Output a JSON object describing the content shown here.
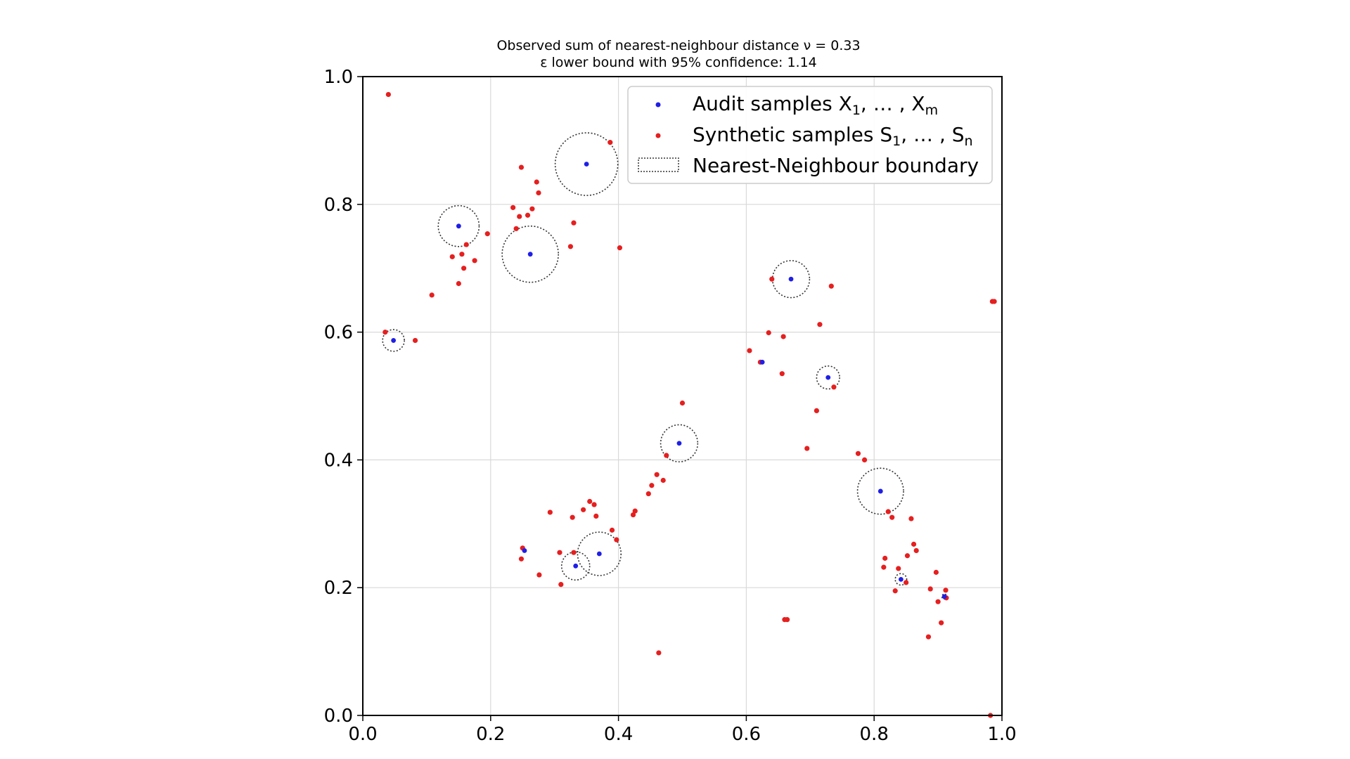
{
  "chart_data": {
    "type": "scatter",
    "title_line1": "Observed sum of nearest-neighbour distance ν = 0.33",
    "title_line2": "ε lower bound with 95% confidence: 1.14",
    "xlabel": "",
    "ylabel": "",
    "xlim": [
      0.0,
      1.0
    ],
    "ylim": [
      0.0,
      1.0
    ],
    "grid": true,
    "legend_position": "top-right",
    "x_ticks": [
      "0.0",
      "0.2",
      "0.4",
      "0.6",
      "0.8",
      "1.0"
    ],
    "y_ticks": [
      "0.0",
      "0.2",
      "0.4",
      "0.6",
      "0.8",
      "1.0"
    ],
    "legend": {
      "audit_label": "Audit samples X",
      "audit_sub1": "1",
      "audit_mid": ", … , X",
      "audit_sub2": "m",
      "synthetic_label": "Synthetic samples S",
      "synthetic_sub1": "1",
      "synthetic_mid": ", … , S",
      "synthetic_sub2": "n",
      "boundary_label": "Nearest-Neighbour boundary"
    },
    "colors": {
      "audit": "#1f1fe6",
      "synthetic": "#e61f1f",
      "boundary": "#333333",
      "grid": "#d9d9d9"
    },
    "series": [
      {
        "name": "Audit samples X1, …, Xm",
        "marker": "blue-dot",
        "points": [
          {
            "x": 0.048,
            "y": 0.587,
            "r": 0.017
          },
          {
            "x": 0.15,
            "y": 0.766,
            "r": 0.032
          },
          {
            "x": 0.262,
            "y": 0.722,
            "r": 0.044
          },
          {
            "x": 0.35,
            "y": 0.863,
            "r": 0.049
          },
          {
            "x": 0.253,
            "y": 0.258,
            "r": 0.0
          },
          {
            "x": 0.333,
            "y": 0.234,
            "r": 0.022
          },
          {
            "x": 0.37,
            "y": 0.253,
            "r": 0.034
          },
          {
            "x": 0.495,
            "y": 0.426,
            "r": 0.029
          },
          {
            "x": 0.67,
            "y": 0.683,
            "r": 0.029
          },
          {
            "x": 0.728,
            "y": 0.529,
            "r": 0.018
          },
          {
            "x": 0.81,
            "y": 0.351,
            "r": 0.036
          },
          {
            "x": 0.842,
            "y": 0.213,
            "r": 0.009
          },
          {
            "x": 0.91,
            "y": 0.186,
            "r": 0.004
          },
          {
            "x": 0.625,
            "y": 0.553,
            "r": 0.0
          }
        ]
      },
      {
        "name": "Synthetic samples S1, …, Sn",
        "marker": "red-dot",
        "points": [
          {
            "x": 0.04,
            "y": 0.972
          },
          {
            "x": 0.035,
            "y": 0.6
          },
          {
            "x": 0.082,
            "y": 0.587
          },
          {
            "x": 0.108,
            "y": 0.658
          },
          {
            "x": 0.14,
            "y": 0.718
          },
          {
            "x": 0.15,
            "y": 0.676
          },
          {
            "x": 0.155,
            "y": 0.722
          },
          {
            "x": 0.158,
            "y": 0.7
          },
          {
            "x": 0.162,
            "y": 0.737
          },
          {
            "x": 0.175,
            "y": 0.712
          },
          {
            "x": 0.195,
            "y": 0.754
          },
          {
            "x": 0.235,
            "y": 0.795
          },
          {
            "x": 0.24,
            "y": 0.762
          },
          {
            "x": 0.245,
            "y": 0.781
          },
          {
            "x": 0.248,
            "y": 0.858
          },
          {
            "x": 0.258,
            "y": 0.783
          },
          {
            "x": 0.265,
            "y": 0.793
          },
          {
            "x": 0.272,
            "y": 0.835
          },
          {
            "x": 0.275,
            "y": 0.818
          },
          {
            "x": 0.325,
            "y": 0.734
          },
          {
            "x": 0.33,
            "y": 0.771
          },
          {
            "x": 0.387,
            "y": 0.897
          },
          {
            "x": 0.402,
            "y": 0.732
          },
          {
            "x": 0.248,
            "y": 0.245
          },
          {
            "x": 0.25,
            "y": 0.262
          },
          {
            "x": 0.276,
            "y": 0.22
          },
          {
            "x": 0.293,
            "y": 0.318
          },
          {
            "x": 0.308,
            "y": 0.255
          },
          {
            "x": 0.31,
            "y": 0.205
          },
          {
            "x": 0.328,
            "y": 0.31
          },
          {
            "x": 0.33,
            "y": 0.255
          },
          {
            "x": 0.345,
            "y": 0.322
          },
          {
            "x": 0.355,
            "y": 0.335
          },
          {
            "x": 0.362,
            "y": 0.33
          },
          {
            "x": 0.365,
            "y": 0.312
          },
          {
            "x": 0.39,
            "y": 0.29
          },
          {
            "x": 0.397,
            "y": 0.275
          },
          {
            "x": 0.423,
            "y": 0.314
          },
          {
            "x": 0.426,
            "y": 0.32
          },
          {
            "x": 0.447,
            "y": 0.347
          },
          {
            "x": 0.452,
            "y": 0.36
          },
          {
            "x": 0.46,
            "y": 0.377
          },
          {
            "x": 0.47,
            "y": 0.368
          },
          {
            "x": 0.475,
            "y": 0.407
          },
          {
            "x": 0.5,
            "y": 0.489
          },
          {
            "x": 0.463,
            "y": 0.098
          },
          {
            "x": 0.605,
            "y": 0.571
          },
          {
            "x": 0.622,
            "y": 0.553
          },
          {
            "x": 0.635,
            "y": 0.599
          },
          {
            "x": 0.64,
            "y": 0.683
          },
          {
            "x": 0.656,
            "y": 0.535
          },
          {
            "x": 0.658,
            "y": 0.593
          },
          {
            "x": 0.66,
            "y": 0.15
          },
          {
            "x": 0.664,
            "y": 0.15
          },
          {
            "x": 0.695,
            "y": 0.418
          },
          {
            "x": 0.71,
            "y": 0.477
          },
          {
            "x": 0.715,
            "y": 0.612
          },
          {
            "x": 0.733,
            "y": 0.672
          },
          {
            "x": 0.737,
            "y": 0.514
          },
          {
            "x": 0.775,
            "y": 0.41
          },
          {
            "x": 0.785,
            "y": 0.4
          },
          {
            "x": 0.815,
            "y": 0.232
          },
          {
            "x": 0.817,
            "y": 0.246
          },
          {
            "x": 0.822,
            "y": 0.319
          },
          {
            "x": 0.828,
            "y": 0.31
          },
          {
            "x": 0.833,
            "y": 0.195
          },
          {
            "x": 0.838,
            "y": 0.23
          },
          {
            "x": 0.85,
            "y": 0.208
          },
          {
            "x": 0.852,
            "y": 0.25
          },
          {
            "x": 0.858,
            "y": 0.308
          },
          {
            "x": 0.862,
            "y": 0.268
          },
          {
            "x": 0.866,
            "y": 0.258
          },
          {
            "x": 0.885,
            "y": 0.123
          },
          {
            "x": 0.888,
            "y": 0.198
          },
          {
            "x": 0.897,
            "y": 0.224
          },
          {
            "x": 0.9,
            "y": 0.178
          },
          {
            "x": 0.905,
            "y": 0.145
          },
          {
            "x": 0.912,
            "y": 0.196
          },
          {
            "x": 0.913,
            "y": 0.184
          },
          {
            "x": 0.985,
            "y": 0.648
          },
          {
            "x": 0.988,
            "y": 0.648
          },
          {
            "x": 0.982,
            "y": 0.0
          }
        ]
      }
    ]
  }
}
